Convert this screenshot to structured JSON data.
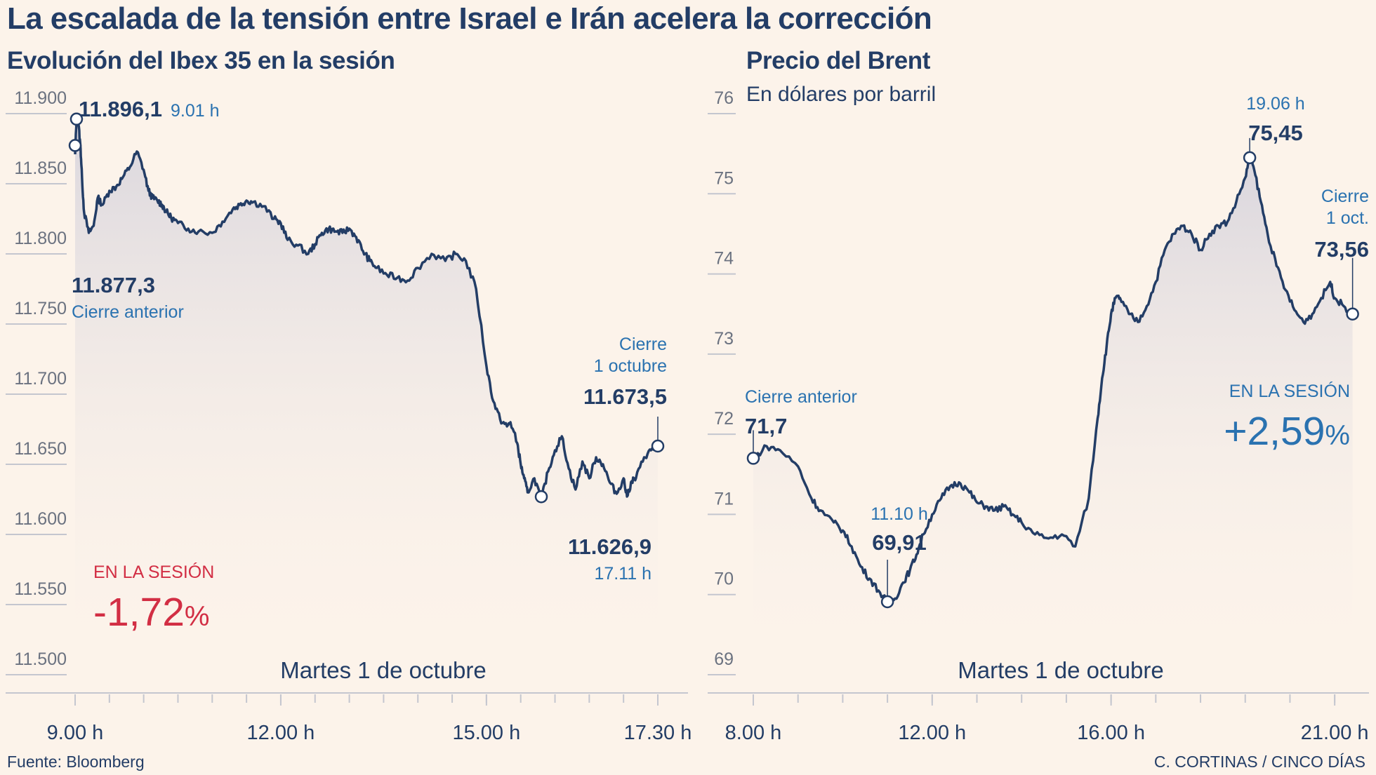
{
  "title": "La escalada de la tensión entre Israel e Irán acelera la corrección",
  "source": "Fuente: Bloomberg",
  "credit": "C. CORTINAS / CINCO DÍAS",
  "colors": {
    "navy": "#233d66",
    "blue": "#2a72b0",
    "red": "#d22e44",
    "background": "#fcf3ea",
    "grid": "#c4c6cf"
  },
  "chart_data": [
    {
      "type": "line",
      "title": "Evolución del Ibex 35 en la sesión",
      "xlabel": "Martes 1 de octubre",
      "ylim": [
        11500,
        11900
      ],
      "y_ticks": [
        11500,
        11550,
        11600,
        11650,
        11700,
        11750,
        11800,
        11850,
        11900
      ],
      "y_tick_labels": [
        "11.500",
        "11.550",
        "11.600",
        "11.650",
        "11.700",
        "11.750",
        "11.800",
        "11.850",
        "11.900"
      ],
      "xlim": [
        9.0,
        17.5
      ],
      "x_ticks": [
        9.0,
        12.0,
        15.0,
        17.5
      ],
      "x_tick_labels": [
        "9.00 h",
        "12.00 h",
        "15.00 h",
        "17.30 h"
      ],
      "x": [
        9.0,
        9.02,
        9.05,
        9.08,
        9.1,
        9.13,
        9.2,
        9.27,
        9.33,
        9.4,
        9.5,
        9.6,
        9.7,
        9.8,
        9.9,
        10.0,
        10.07,
        10.13,
        10.2,
        10.27,
        10.33,
        10.4,
        10.5,
        10.65,
        10.8,
        11.0,
        11.15,
        11.3,
        11.4,
        11.5,
        11.6,
        11.75,
        11.9,
        12.0,
        12.1,
        12.25,
        12.4,
        12.5,
        12.6,
        12.7,
        12.8,
        12.9,
        13.0,
        13.1,
        13.2,
        13.3,
        13.4,
        13.55,
        13.7,
        13.85,
        14.0,
        14.2,
        14.4,
        14.55,
        14.7,
        14.85,
        15.0,
        15.1,
        15.2,
        15.3,
        15.35,
        15.45,
        15.5,
        15.55,
        15.6,
        15.7,
        15.8,
        15.9,
        16.0,
        16.1,
        16.2,
        16.3,
        16.4,
        16.5,
        16.6,
        16.7,
        16.8,
        16.9,
        17.0,
        17.05,
        17.12,
        17.18,
        17.3,
        17.4,
        17.5
      ],
      "values": [
        11871,
        11896,
        11892,
        11875,
        11855,
        11830,
        11815,
        11820,
        11840,
        11835,
        11845,
        11848,
        11855,
        11862,
        11873,
        11860,
        11845,
        11840,
        11838,
        11835,
        11830,
        11826,
        11822,
        11818,
        11816,
        11815,
        11823,
        11832,
        11835,
        11838,
        11837,
        11834,
        11825,
        11822,
        11810,
        11806,
        11800,
        11807,
        11815,
        11818,
        11816,
        11815,
        11818,
        11812,
        11802,
        11795,
        11790,
        11785,
        11783,
        11781,
        11790,
        11800,
        11795,
        11800,
        11795,
        11775,
        11720,
        11695,
        11682,
        11677,
        11680,
        11665,
        11650,
        11640,
        11630,
        11640,
        11625,
        11645,
        11660,
        11670,
        11647,
        11632,
        11652,
        11640,
        11655,
        11650,
        11637,
        11629,
        11640,
        11627,
        11638,
        11640,
        11655,
        11660,
        11663
      ],
      "prev_close": {
        "label": "Cierre anterior",
        "value_label": "11.877,3",
        "value": 11877.3
      },
      "max": {
        "value_label": "11.896,1",
        "time": "9.01 h",
        "value": 11896.1
      },
      "min": {
        "value_label": "11.626,9",
        "time": "17.11 h",
        "value": 11626.9
      },
      "close": {
        "label_line1": "Cierre",
        "label_line2": "1 octubre",
        "value_label": "11.673,5",
        "value": 11673.5
      },
      "session": {
        "label": "EN LA SESIÓN",
        "value": "-1,72",
        "unit": "%"
      }
    },
    {
      "type": "line",
      "title": "Precio del Brent",
      "subtitle": "En dólares por barril",
      "xlabel": "Martes 1 de octubre",
      "ylim": [
        69,
        76
      ],
      "y_ticks": [
        69,
        70,
        71,
        72,
        73,
        74,
        75,
        76
      ],
      "y_tick_labels": [
        "69",
        "70",
        "71",
        "72",
        "73",
        "74",
        "75",
        "76"
      ],
      "xlim": [
        8.0,
        21.5
      ],
      "x_ticks": [
        8.0,
        12.0,
        16.0,
        21.0
      ],
      "x_tick_labels": [
        "8.00 h",
        "12.00 h",
        "16.00 h",
        "21.00 h"
      ],
      "x": [
        8.0,
        8.3,
        8.6,
        9.0,
        9.3,
        9.5,
        9.8,
        10.0,
        10.2,
        10.4,
        10.6,
        10.8,
        11.0,
        11.17,
        11.35,
        11.5,
        11.65,
        11.8,
        12.0,
        12.2,
        12.4,
        12.6,
        12.8,
        13.0,
        13.2,
        13.4,
        13.6,
        13.8,
        14.0,
        14.3,
        14.6,
        14.9,
        15.2,
        15.5,
        15.7,
        15.8,
        15.9,
        16.0,
        16.1,
        16.2,
        16.4,
        16.6,
        16.8,
        17.0,
        17.2,
        17.4,
        17.6,
        17.8,
        18.0,
        18.2,
        18.4,
        18.6,
        18.8,
        19.0,
        19.1,
        19.2,
        19.35,
        19.5,
        19.7,
        19.9,
        20.1,
        20.3,
        20.5,
        20.7,
        20.9,
        21.0,
        21.2,
        21.4
      ],
      "values": [
        71.7,
        71.85,
        71.8,
        71.6,
        71.2,
        71.05,
        70.9,
        70.8,
        70.6,
        70.35,
        70.2,
        70.05,
        69.9,
        69.95,
        70.15,
        70.3,
        70.5,
        70.75,
        71.0,
        71.2,
        71.35,
        71.4,
        71.3,
        71.15,
        71.1,
        71.05,
        71.1,
        71.0,
        70.9,
        70.75,
        70.7,
        70.75,
        70.6,
        71.2,
        72.2,
        72.7,
        73.1,
        73.5,
        73.7,
        73.7,
        73.5,
        73.4,
        73.6,
        73.9,
        74.3,
        74.5,
        74.6,
        74.5,
        74.3,
        74.5,
        74.6,
        74.65,
        74.9,
        75.2,
        75.45,
        75.3,
        74.9,
        74.5,
        74.1,
        73.8,
        73.55,
        73.4,
        73.5,
        73.7,
        73.9,
        73.7,
        73.6,
        73.5
      ],
      "prev_close": {
        "label": "Cierre anterior",
        "value_label": "71,7",
        "value": 71.7
      },
      "max": {
        "value_label": "75,45",
        "time": "19.06 h",
        "value": 75.45
      },
      "min": {
        "value_label": "69,91",
        "time": "11.10 h",
        "value": 69.91
      },
      "close": {
        "label_line1": "Cierre",
        "label_line2": "1 oct.",
        "value_label": "73,56",
        "value": 73.56
      },
      "session": {
        "label": "EN LA SESIÓN",
        "value": "+2,59",
        "unit": "%"
      }
    }
  ]
}
